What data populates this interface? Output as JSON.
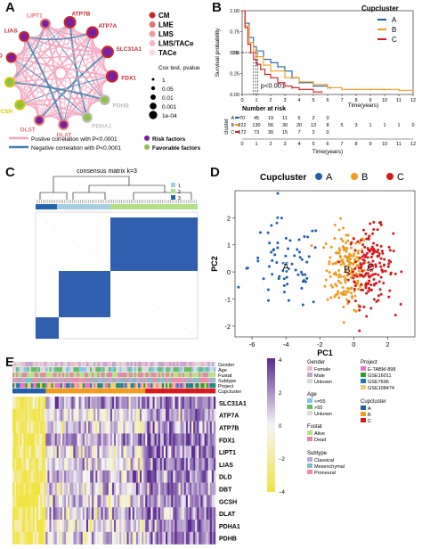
{
  "panel_labels": {
    "A": "A",
    "B": "B",
    "C": "C",
    "D": "D",
    "E": "E"
  },
  "colors": {
    "CM": "#c62828",
    "LME": "#e57373",
    "LMS": "#ef9a9a",
    "LMS_TACe": "#f3b7c7",
    "TACe": "#f8d7e0",
    "risk": "#7b1fa2",
    "favorable": "#8bc34a",
    "pos_line": "#f4a6c0",
    "neg_line": "#4a7fb0",
    "cupA": "#1f5fa8",
    "cupB": "#f29a1b",
    "cupC": "#d7191c",
    "heat_low": "#f0e442",
    "heat_high": "#5b2a90"
  },
  "network": {
    "genes": [
      "LIPT1",
      "ATP7B",
      "ATP7A",
      "SLC31A1",
      "FDX1",
      "PDHB",
      "PDHA1",
      "DLAT",
      "DLST",
      "GCSH",
      "DBT",
      "DLD",
      "LIAS"
    ],
    "legend_cat": [
      "CM",
      "LME",
      "LMS",
      "LMS/TACe",
      "TACe"
    ],
    "legend_cox_title": "Cox test, pvalue",
    "legend_cox": [
      "1",
      "0.05",
      "0.01",
      "0.001",
      "1e-04"
    ],
    "legend_pos": "Postive correlation with P<0.0001",
    "legend_neg": "Negative correlation with P<0.0001",
    "legend_risk": "Risk factors",
    "legend_fav": "Favorable factors"
  },
  "chart_data": [
    {
      "type": "line",
      "panel": "B",
      "title": "Cupcluster",
      "xlabel": "Time(years)",
      "ylabel": "Survival probability",
      "xlim": [
        0,
        12
      ],
      "ylim": [
        0,
        1
      ],
      "x_ticks": [
        "0",
        "1",
        "2",
        "3",
        "4",
        "5",
        "6",
        "7",
        "8",
        "9",
        "10",
        "11",
        "12"
      ],
      "y_ticks": [
        "0.00",
        "0.25",
        "0.50",
        "0.75",
        "1.00"
      ],
      "median_label": "0.5",
      "pvalue": "p<0.001",
      "series": [
        {
          "name": "A",
          "x": [
            0,
            0.2,
            0.5,
            0.8,
            1,
            1.5,
            2,
            2.5,
            3,
            3.5,
            4,
            5,
            6,
            6.2
          ],
          "y": [
            1,
            0.85,
            0.68,
            0.57,
            0.52,
            0.42,
            0.38,
            0.33,
            0.28,
            0.2,
            0.14,
            0.1,
            0.08,
            0.08
          ]
        },
        {
          "name": "B",
          "x": [
            0,
            0.2,
            0.5,
            0.8,
            1,
            1.5,
            2,
            3,
            4,
            5,
            6,
            7,
            8,
            9,
            10,
            11,
            12
          ],
          "y": [
            1,
            0.82,
            0.62,
            0.52,
            0.45,
            0.35,
            0.28,
            0.2,
            0.15,
            0.12,
            0.08,
            0.06,
            0.06,
            0.06,
            0.06,
            0.05,
            0.05
          ]
        },
        {
          "name": "C",
          "x": [
            0,
            0.2,
            0.4,
            0.6,
            0.8,
            1,
            1.3,
            1.6,
            2,
            2.5,
            3,
            3.5,
            4,
            5,
            5.6
          ],
          "y": [
            1,
            0.8,
            0.6,
            0.5,
            0.42,
            0.36,
            0.3,
            0.24,
            0.2,
            0.14,
            0.1,
            0.08,
            0.06,
            0.03,
            0.03
          ]
        }
      ],
      "risk_table": {
        "title": "Number at risk",
        "ylabel": "cluster",
        "xlabel": "Time(years)",
        "rows": [
          {
            "name": "A",
            "values": [
              "70",
              "45",
              "19",
              "11",
              "5",
              "2",
              "0",
              "",
              "",
              "",
              "",
              "",
              ""
            ]
          },
          {
            "name": "B",
            "values": [
              "222",
              "130",
              "56",
              "30",
              "20",
              "13",
              "8",
              "5",
              "3",
              "1",
              "1",
              "1",
              "0"
            ]
          },
          {
            "name": "C",
            "values": [
              "172",
              "73",
              "30",
              "15",
              "7",
              "3",
              "0",
              "",
              "",
              "",
              "",
              "",
              ""
            ]
          }
        ]
      }
    },
    {
      "type": "heatmap",
      "panel": "C",
      "title": "consensus matrix k=3",
      "legend": [
        "1",
        "2",
        "3"
      ]
    },
    {
      "type": "scatter",
      "panel": "D",
      "title": "Cupcluster",
      "xlabel": "PC1",
      "ylabel": "PC2",
      "xlim": [
        -7,
        3.6
      ],
      "ylim": [
        -2.4,
        3
      ],
      "x_ticks": [
        "-6",
        "-4",
        "-2",
        "0",
        "2"
      ],
      "y_ticks": [
        "-2",
        "-1",
        "0",
        "1",
        "2"
      ],
      "series": [
        {
          "name": "A",
          "center": [
            -4.0,
            0.2
          ],
          "label": "A"
        },
        {
          "name": "B",
          "center": [
            -0.4,
            0.1
          ],
          "label": "B"
        },
        {
          "name": "C",
          "center": [
            1.0,
            0.2
          ],
          "label": "C"
        }
      ]
    },
    {
      "type": "heatmap",
      "panel": "E",
      "annotation_rows": [
        "Gender",
        "Age",
        "Fustat",
        "Subtype",
        "Project",
        "Cupcluster"
      ],
      "genes": [
        "SLC31A1",
        "ATP7A",
        "ATP7B",
        "FDX1",
        "LIPT1",
        "LIAS",
        "DLD",
        "DBT",
        "GCSH",
        "DLAT",
        "PDHA1",
        "PDHB"
      ],
      "colorbar_ticks": [
        "4",
        "2",
        "0",
        "−2",
        "−4"
      ]
    }
  ],
  "heat_legend": {
    "gender_title": "Gender",
    "gender": [
      "Female",
      "Male",
      "Unkown"
    ],
    "age_title": "Age",
    "age": [
      "<=55",
      ">55",
      "Unkown"
    ],
    "fustat_title": "Fustat",
    "fustat": [
      "Alive",
      "Dead"
    ],
    "subtype_title": "Subtype",
    "subtype": [
      "Classical",
      "Mesenchymal",
      "Proneural"
    ],
    "project_title": "Project",
    "project": [
      "E-TABM-898",
      "GSE16011",
      "GSE7696",
      "GSE108474"
    ],
    "cup_title": "Cupcluster",
    "cup": [
      "A",
      "B",
      "C"
    ]
  }
}
